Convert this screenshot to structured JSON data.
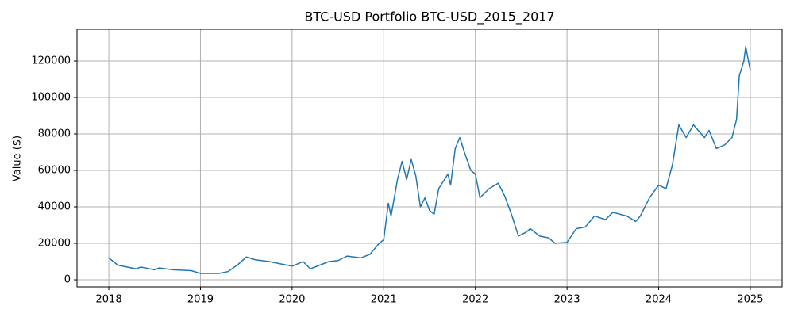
{
  "chart_data": {
    "type": "line",
    "title": "BTC-USD Portfolio BTC-USD_2015_2017",
    "y_label": "Value ($)",
    "x": [
      2018.0,
      2018.1,
      2018.3,
      2018.35,
      2018.5,
      2018.55,
      2018.7,
      2018.9,
      2019.0,
      2019.2,
      2019.3,
      2019.4,
      2019.5,
      2019.6,
      2019.75,
      2019.85,
      2020.0,
      2020.12,
      2020.2,
      2020.3,
      2020.4,
      2020.5,
      2020.6,
      2020.75,
      2020.85,
      2020.95,
      2021.0,
      2021.05,
      2021.08,
      2021.15,
      2021.2,
      2021.25,
      2021.3,
      2021.35,
      2021.4,
      2021.45,
      2021.5,
      2021.55,
      2021.6,
      2021.7,
      2021.73,
      2021.78,
      2021.83,
      2021.88,
      2021.95,
      2022.0,
      2022.05,
      2022.15,
      2022.25,
      2022.32,
      2022.4,
      2022.47,
      2022.55,
      2022.6,
      2022.7,
      2022.8,
      2022.87,
      2023.0,
      2023.1,
      2023.2,
      2023.3,
      2023.42,
      2023.5,
      2023.65,
      2023.75,
      2023.8,
      2023.9,
      2024.0,
      2024.08,
      2024.15,
      2024.22,
      2024.3,
      2024.38,
      2024.5,
      2024.55,
      2024.63,
      2024.72,
      2024.8,
      2024.85,
      2024.88,
      2024.93,
      2024.95,
      2024.98,
      2025.0
    ],
    "series": [
      {
        "color": "#1f77b4",
        "values": [
          12000,
          8000,
          6000,
          7000,
          5500,
          6500,
          5500,
          5000,
          3500,
          3500,
          4500,
          8000,
          12500,
          11000,
          10000,
          9000,
          7500,
          10000,
          6000,
          8000,
          10000,
          10500,
          13000,
          12000,
          14000,
          20000,
          22000,
          42000,
          35000,
          55000,
          65000,
          55000,
          66000,
          57000,
          40000,
          45000,
          38000,
          36000,
          50000,
          58000,
          52000,
          72000,
          78000,
          70000,
          60000,
          58000,
          45000,
          50000,
          53000,
          46000,
          35000,
          24000,
          26000,
          28000,
          24000,
          23000,
          20000,
          20500,
          28000,
          29000,
          35000,
          33000,
          37000,
          35000,
          32000,
          35000,
          45000,
          52000,
          50000,
          63000,
          85000,
          78000,
          85000,
          78000,
          82000,
          72000,
          74000,
          78000,
          88000,
          112000,
          120000,
          128000,
          120000,
          115000
        ]
      }
    ],
    "xlim": [
      2017.653,
      2025.347
    ],
    "xticks": [
      2018,
      2019,
      2020,
      2021,
      2022,
      2023,
      2024,
      2025
    ],
    "ylim": [
      -3900,
      137400
    ],
    "yticks": [
      0,
      20000,
      40000,
      60000,
      80000,
      100000,
      120000
    ],
    "grid": true
  }
}
